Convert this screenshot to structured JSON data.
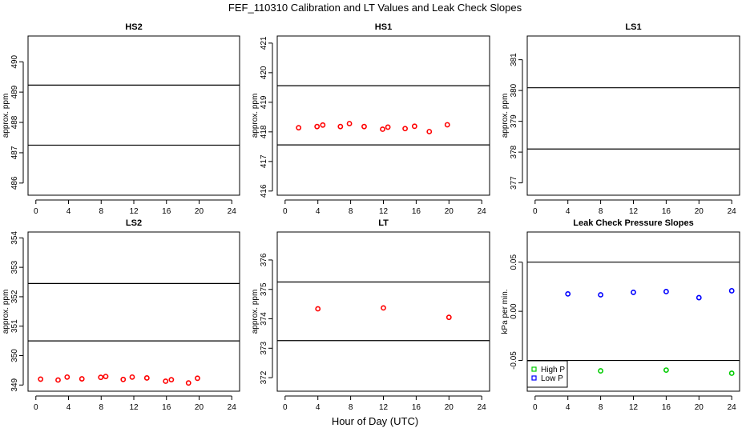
{
  "title": "FEF_110310  Calibration and LT Values and Leak Check Slopes",
  "xlabel": "Hour of Day (UTC)",
  "chart_data": [
    {
      "type": "scatter",
      "title": "HS2",
      "ylabel": "approx. ppm",
      "xlim": [
        -0.96,
        24.96
      ],
      "ylim": [
        485.6,
        490.85
      ],
      "xticks": [
        0,
        4,
        8,
        12,
        16,
        20,
        24
      ],
      "yticks": [
        486,
        487,
        488,
        489,
        490
      ],
      "hlines": [
        489.23,
        487.25
      ],
      "series": [
        {
          "name": "HS2",
          "color": "#ff0000",
          "x": [],
          "y": []
        }
      ]
    },
    {
      "type": "scatter",
      "title": "HS1",
      "ylabel": "approx. ppm",
      "xlim": [
        -0.96,
        24.96
      ],
      "ylim": [
        415.86,
        421.24
      ],
      "xticks": [
        0,
        4,
        8,
        12,
        16,
        20,
        24
      ],
      "yticks": [
        416,
        417,
        418,
        419,
        420,
        421
      ],
      "hlines": [
        419.56,
        417.56
      ],
      "series": [
        {
          "name": "HS1",
          "color": "#ff0000",
          "x": [
            1.65,
            3.9,
            4.6,
            6.75,
            7.85,
            9.65,
            11.9,
            12.55,
            14.65,
            15.8,
            17.6,
            19.8
          ],
          "y": [
            418.14,
            418.18,
            418.23,
            418.18,
            418.28,
            418.18,
            418.09,
            418.16,
            418.11,
            418.19,
            418.01,
            418.24
          ]
        }
      ]
    },
    {
      "type": "scatter",
      "title": "LS1",
      "ylabel": "approx. ppm",
      "xlim": [
        -0.96,
        24.96
      ],
      "ylim": [
        376.6,
        381.77
      ],
      "xticks": [
        0,
        4,
        8,
        12,
        16,
        20,
        24
      ],
      "yticks": [
        377,
        378,
        379,
        380,
        381
      ],
      "hlines": [
        380.09,
        378.1
      ],
      "series": [
        {
          "name": "LS1",
          "color": "#ff0000",
          "x": [],
          "y": []
        }
      ]
    },
    {
      "type": "scatter",
      "title": "LS2",
      "ylabel": "approx. ppm",
      "xlim": [
        -0.96,
        24.96
      ],
      "ylim": [
        348.79,
        354.2
      ],
      "xticks": [
        0,
        4,
        8,
        12,
        16,
        20,
        24
      ],
      "yticks": [
        349,
        350,
        351,
        352,
        353,
        354
      ],
      "hlines": [
        352.45,
        350.5
      ],
      "series": [
        {
          "name": "LS2",
          "color": "#ff0000",
          "x": [
            0.58,
            2.72,
            3.83,
            5.64,
            7.95,
            8.56,
            10.7,
            11.8,
            13.6,
            15.9,
            16.6,
            18.7,
            19.8
          ],
          "y": [
            349.2,
            349.17,
            349.27,
            349.21,
            349.26,
            349.29,
            349.19,
            349.27,
            349.24,
            349.13,
            349.18,
            349.07,
            349.23
          ]
        }
      ]
    },
    {
      "type": "scatter",
      "title": "LT",
      "ylabel": "approx. ppm",
      "xlim": [
        -0.96,
        24.96
      ],
      "ylim": [
        371.54,
        376.95
      ],
      "xticks": [
        0,
        4,
        8,
        12,
        16,
        20,
        24
      ],
      "yticks": [
        372,
        373,
        374,
        375,
        376
      ],
      "hlines": [
        375.25,
        373.26
      ],
      "series": [
        {
          "name": "LT",
          "color": "#ff0000",
          "x": [
            4,
            12,
            20
          ],
          "y": [
            374.34,
            374.37,
            374.05
          ]
        }
      ]
    },
    {
      "type": "scatter",
      "title": "Leak Check Pressure Slopes",
      "ylabel": "kPa per min.",
      "xlim": [
        -0.96,
        24.96
      ],
      "ylim": [
        -0.0813,
        0.0807
      ],
      "xticks": [
        0,
        4,
        8,
        12,
        16,
        20,
        24
      ],
      "yticks": [
        -0.05,
        0.0,
        0.05
      ],
      "ytick_labels": [
        "-0.05",
        "0.00",
        "0.05"
      ],
      "hlines": [
        0.05,
        -0.05
      ],
      "legend": "bottom-left",
      "series": [
        {
          "name": "High P",
          "color": "#00cc00",
          "x": [
            8,
            16,
            24
          ],
          "y": [
            -0.0606,
            -0.0598,
            -0.063
          ]
        },
        {
          "name": "Low P",
          "color": "#0000ff",
          "x": [
            4,
            8,
            12,
            16,
            20,
            24
          ],
          "y": [
            0.0177,
            0.0168,
            0.0193,
            0.0201,
            0.0139,
            0.0209
          ]
        }
      ]
    }
  ]
}
